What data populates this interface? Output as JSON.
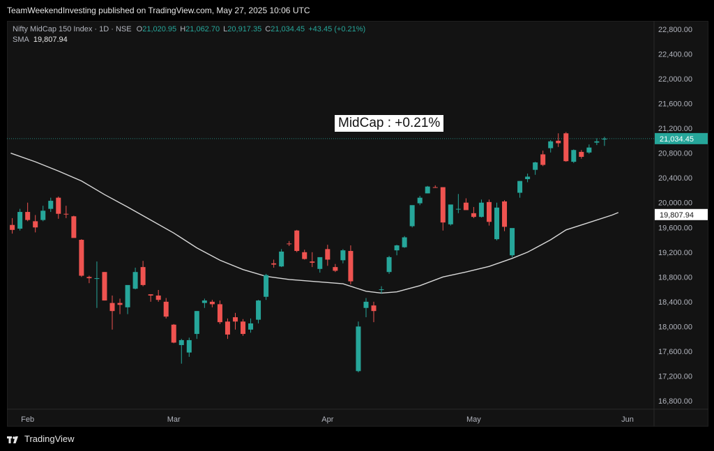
{
  "header": {
    "published_line": "TeamWeekendInvesting published on TradingView.com, May 27, 2025 10:06 UTC"
  },
  "legend": {
    "symbol": "Nifty MidCap 150 Index · 1D · NSE",
    "open_label": "O",
    "open": "21,020.95",
    "high_label": "H",
    "high": "21,062.70",
    "low_label": "L",
    "low": "20,917.35",
    "close_label": "C",
    "close": "21,034.45",
    "change": "+43.45 (+0.21%)",
    "sma_label": "SMA",
    "sma_value": "19,807.94"
  },
  "annotation": "MidCap : +0.21%",
  "footer": {
    "brand": "TradingView",
    "logo_icon": "tradingview-logo-icon"
  },
  "colors": {
    "up": "#26a69a",
    "down": "#ef5350",
    "sma": "#d9d9d9",
    "background": "#131313"
  },
  "chart_data": {
    "type": "candlestick",
    "y_axis": {
      "min": 16600,
      "max": 23000,
      "ticks": [
        22800,
        22400,
        22000,
        21600,
        21200,
        20800,
        20400,
        20000,
        19600,
        19200,
        18800,
        18400,
        18000,
        17600,
        17200,
        16800
      ],
      "tick_labels": [
        "22,800.00",
        "22,400.00",
        "22,000.00",
        "21,600.00",
        "21,200.00",
        "20,800.00",
        "20,400.00",
        "20,000.00",
        "19,600.00",
        "19,200.00",
        "18,800.00",
        "18,400.00",
        "18,000.00",
        "17,600.00",
        "17,200.00",
        "16,800.00"
      ]
    },
    "x_axis": {
      "labels": [
        "Feb",
        "Mar",
        "Apr",
        "May",
        "Jun"
      ],
      "label_index": [
        2,
        21,
        41,
        60,
        80
      ]
    },
    "price_tag": {
      "value": 21034.45,
      "label": "21,034.45"
    },
    "sma_tag": {
      "value": 19807.94,
      "label": "19,807.94"
    },
    "candles": [
      [
        19640,
        19750,
        19500,
        19560
      ],
      [
        19580,
        19900,
        19550,
        19850
      ],
      [
        19850,
        20000,
        19700,
        19720
      ],
      [
        19700,
        19800,
        19520,
        19600
      ],
      [
        19720,
        19950,
        19700,
        19870
      ],
      [
        19900,
        20080,
        19850,
        20030
      ],
      [
        20080,
        20100,
        19740,
        19820
      ],
      [
        19820,
        19950,
        19750,
        19810
      ],
      [
        19780,
        19790,
        19450,
        19430
      ],
      [
        19400,
        19410,
        18800,
        18820
      ],
      [
        18800,
        18820,
        18700,
        18780
      ],
      [
        18770,
        19050,
        18300,
        18780
      ],
      [
        18880,
        18880,
        18420,
        18420
      ],
      [
        18380,
        18500,
        17950,
        18250
      ],
      [
        18380,
        18450,
        18200,
        18350
      ],
      [
        18310,
        18650,
        18200,
        18670
      ],
      [
        18610,
        18950,
        18600,
        18880
      ],
      [
        18960,
        19060,
        18650,
        18670
      ],
      [
        18520,
        18520,
        18400,
        18500
      ],
      [
        18500,
        18590,
        18400,
        18430
      ],
      [
        18400,
        18460,
        18130,
        18160
      ],
      [
        18030,
        18040,
        17730,
        17740
      ],
      [
        17700,
        17800,
        17400,
        17780
      ],
      [
        17580,
        17820,
        17510,
        17780
      ],
      [
        17880,
        18250,
        17800,
        18250
      ],
      [
        18380,
        18450,
        18300,
        18420
      ],
      [
        18400,
        18430,
        18310,
        18360
      ],
      [
        18360,
        18420,
        18040,
        18070
      ],
      [
        18080,
        18130,
        17800,
        17870
      ],
      [
        18150,
        18220,
        17950,
        18080
      ],
      [
        18080,
        18120,
        17850,
        17880
      ],
      [
        17950,
        18130,
        17900,
        18050
      ],
      [
        18110,
        18430,
        18050,
        18420
      ],
      [
        18480,
        18850,
        18430,
        18830
      ],
      [
        19020,
        19080,
        18950,
        19000
      ],
      [
        18970,
        19250,
        18960,
        19210
      ],
      [
        19340,
        19380,
        19300,
        19330
      ],
      [
        19550,
        19560,
        19200,
        19220
      ],
      [
        19200,
        19240,
        19080,
        19090
      ],
      [
        19050,
        19200,
        18960,
        19030
      ],
      [
        18930,
        19110,
        18870,
        19120
      ],
      [
        19250,
        19320,
        18980,
        19080
      ],
      [
        18960,
        19010,
        18880,
        18900
      ],
      [
        19070,
        19250,
        19020,
        19230
      ],
      [
        19220,
        19310,
        18680,
        18730
      ],
      [
        17280,
        18080,
        17260,
        18000
      ],
      [
        18300,
        18460,
        18150,
        18400
      ],
      [
        18340,
        18400,
        18070,
        18250
      ],
      [
        18600,
        18650,
        18530,
        18600
      ],
      [
        18880,
        19140,
        18850,
        19120
      ],
      [
        19230,
        19320,
        19150,
        19310
      ],
      [
        19280,
        19460,
        19270,
        19440
      ],
      [
        19620,
        19950,
        19600,
        19960
      ],
      [
        19990,
        20110,
        19960,
        20080
      ],
      [
        20150,
        20270,
        20150,
        20260
      ],
      [
        20250,
        20280,
        20240,
        20240
      ],
      [
        20250,
        20250,
        19550,
        19680
      ],
      [
        19650,
        19950,
        19630,
        19970
      ],
      [
        19890,
        20140,
        19830,
        19900
      ],
      [
        20000,
        20070,
        19890,
        19880
      ],
      [
        19830,
        19930,
        19750,
        19770
      ],
      [
        19770,
        20050,
        19760,
        20000
      ],
      [
        20010,
        20050,
        19630,
        19690
      ],
      [
        19410,
        20000,
        19390,
        19920
      ],
      [
        20020,
        20040,
        19540,
        19610
      ],
      [
        19150,
        19570,
        19120,
        19590
      ],
      [
        20160,
        20350,
        20080,
        20350
      ],
      [
        20380,
        20470,
        20330,
        20420
      ],
      [
        20530,
        20660,
        20450,
        20650
      ],
      [
        20780,
        20840,
        20590,
        20610
      ],
      [
        20880,
        21010,
        20810,
        20990
      ],
      [
        21000,
        21120,
        20900,
        20960
      ],
      [
        21120,
        21140,
        20660,
        20670
      ],
      [
        20660,
        20860,
        20640,
        20850
      ],
      [
        20820,
        20850,
        20710,
        20740
      ],
      [
        20810,
        20940,
        20790,
        20890
      ],
      [
        20970,
        21040,
        20930,
        20990
      ],
      [
        21020,
        21063,
        20917,
        21034
      ]
    ],
    "sma": {
      "label": "SMA",
      "value": 19807.94,
      "points": [
        [
          -0.2,
          20800
        ],
        [
          3,
          20660
        ],
        [
          6,
          20510
        ],
        [
          9,
          20350
        ],
        [
          12,
          20130
        ],
        [
          15,
          19930
        ],
        [
          18,
          19720
        ],
        [
          21,
          19510
        ],
        [
          24,
          19270
        ],
        [
          27,
          19070
        ],
        [
          30,
          18920
        ],
        [
          33,
          18810
        ],
        [
          36,
          18760
        ],
        [
          40,
          18720
        ],
        [
          43,
          18690
        ],
        [
          46,
          18570
        ],
        [
          48,
          18540
        ],
        [
          50,
          18560
        ],
        [
          53,
          18660
        ],
        [
          56,
          18800
        ],
        [
          59,
          18880
        ],
        [
          62,
          18970
        ],
        [
          65,
          19100
        ],
        [
          67,
          19200
        ],
        [
          70,
          19400
        ],
        [
          72,
          19560
        ],
        [
          75,
          19680
        ],
        [
          78,
          19800
        ],
        [
          78.8,
          19840
        ]
      ]
    }
  }
}
